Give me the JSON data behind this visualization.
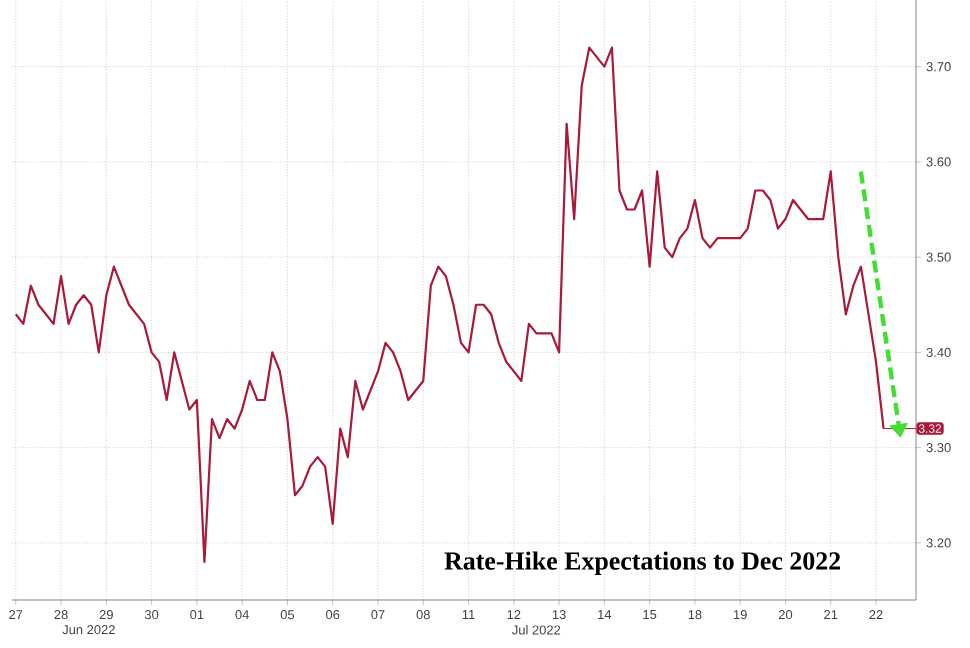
{
  "chart_data": {
    "type": "line",
    "title": "Rate-Hike Expectations to Dec 2022",
    "categories": [
      "27",
      null,
      null,
      null,
      null,
      null,
      "28",
      null,
      null,
      null,
      null,
      null,
      "29",
      null,
      null,
      null,
      null,
      null,
      "30",
      null,
      null,
      null,
      null,
      null,
      "01",
      null,
      null,
      null,
      null,
      null,
      "04",
      null,
      null,
      null,
      null,
      null,
      "05",
      null,
      null,
      null,
      null,
      null,
      "06",
      null,
      null,
      null,
      null,
      null,
      "07",
      null,
      null,
      null,
      null,
      null,
      "08",
      null,
      null,
      null,
      null,
      null,
      "11",
      null,
      null,
      null,
      null,
      null,
      "12",
      null,
      null,
      null,
      null,
      null,
      "13",
      null,
      null,
      null,
      null,
      null,
      "14",
      null,
      null,
      null,
      null,
      null,
      "15",
      null,
      null,
      null,
      null,
      null,
      "18",
      null,
      null,
      null,
      null,
      null,
      "19",
      null,
      null,
      null,
      null,
      null,
      "20",
      null,
      null,
      null,
      null,
      null,
      "21",
      null,
      null,
      null,
      null,
      null,
      "22",
      null
    ],
    "series": [
      {
        "color": "#a8193a",
        "values": [
          3.44,
          3.43,
          3.47,
          3.45,
          3.44,
          3.43,
          3.48,
          3.43,
          3.45,
          3.46,
          3.45,
          3.4,
          3.46,
          3.49,
          3.47,
          3.45,
          3.44,
          3.43,
          3.4,
          3.39,
          3.35,
          3.4,
          3.37,
          3.34,
          3.35,
          3.18,
          3.33,
          3.31,
          3.33,
          3.32,
          3.34,
          3.37,
          3.35,
          3.35,
          3.4,
          3.38,
          3.33,
          3.25,
          3.26,
          3.28,
          3.29,
          3.28,
          3.22,
          3.32,
          3.29,
          3.37,
          3.34,
          3.36,
          3.38,
          3.41,
          3.4,
          3.38,
          3.35,
          3.36,
          3.37,
          3.47,
          3.49,
          3.48,
          3.45,
          3.41,
          3.4,
          3.45,
          3.45,
          3.44,
          3.41,
          3.39,
          3.38,
          3.37,
          3.43,
          3.42,
          3.42,
          3.42,
          3.4,
          3.64,
          3.54,
          3.68,
          3.72,
          3.71,
          3.7,
          3.72,
          3.57,
          3.55,
          3.55,
          3.57,
          3.49,
          3.59,
          3.51,
          3.5,
          3.52,
          3.53,
          3.56,
          3.52,
          3.51,
          3.52,
          3.52,
          3.52,
          3.52,
          3.53,
          3.57,
          3.57,
          3.56,
          3.53,
          3.54,
          3.56,
          3.55,
          3.54,
          3.54,
          3.54,
          3.59,
          3.5,
          3.44,
          3.47,
          3.49,
          3.44,
          3.39,
          3.32
        ],
        "value_labels": [
          null,
          null,
          null,
          null,
          null,
          null,
          null,
          null,
          null,
          null,
          null,
          null,
          null,
          null,
          null,
          null,
          null,
          null,
          null,
          null,
          null,
          null,
          null,
          null,
          null,
          null,
          null,
          null,
          null,
          null,
          null,
          null,
          null,
          null,
          null,
          null,
          null,
          null,
          null,
          null,
          null,
          null,
          null,
          null,
          null,
          null,
          null,
          null,
          null,
          null,
          null,
          null,
          null,
          null,
          null,
          null,
          null,
          null,
          null,
          null,
          null,
          null,
          null,
          null,
          null,
          null,
          null,
          null,
          null,
          null,
          null,
          null,
          null,
          null,
          null,
          null,
          null,
          null,
          null,
          null,
          null,
          null,
          null,
          null,
          null,
          null,
          null,
          null,
          null,
          null,
          null,
          null,
          null,
          null,
          null,
          null,
          null,
          null,
          null,
          null,
          null,
          null,
          null,
          null,
          null,
          null,
          null,
          null,
          null,
          null,
          null,
          null,
          null,
          null,
          null,
          "3.32"
        ]
      }
    ],
    "ylim": [
      3.14,
      3.77
    ],
    "yticks": [
      {
        "value": 3.2,
        "label": "3.20"
      },
      {
        "value": 3.3,
        "label": "3.30"
      },
      {
        "value": 3.4,
        "label": "3.40"
      },
      {
        "value": 3.5,
        "label": "3.50"
      },
      {
        "value": 3.6,
        "label": "3.60"
      },
      {
        "value": 3.7,
        "label": "3.70"
      }
    ],
    "grid": true,
    "annotations": [
      "Jun 2022",
      "Jul 2022"
    ]
  }
}
